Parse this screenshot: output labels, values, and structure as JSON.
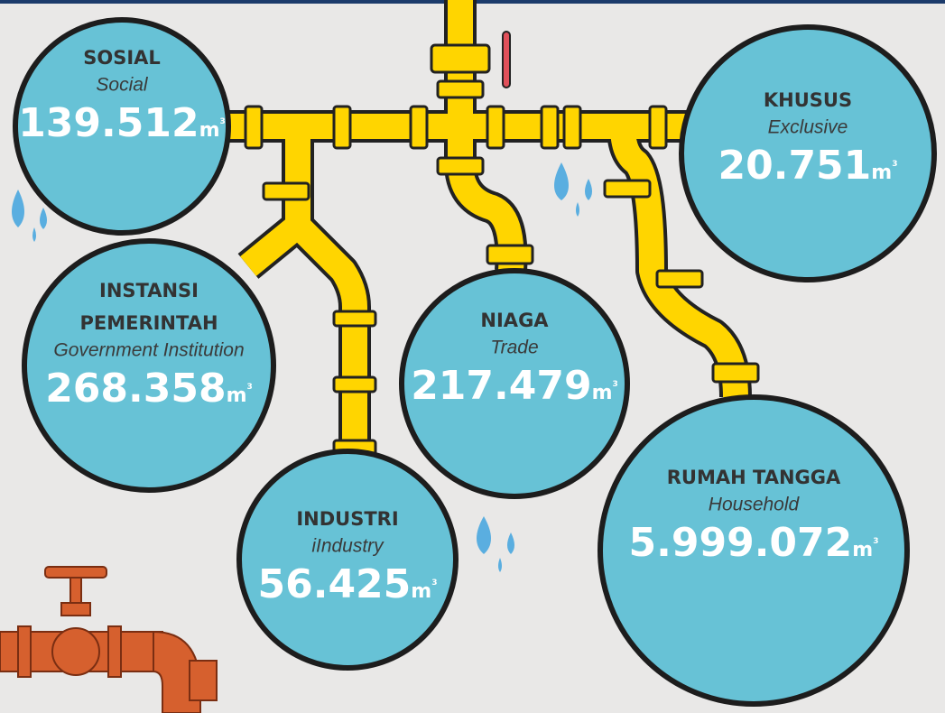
{
  "items": [
    {
      "name_lines": [
        "SOSIAL"
      ],
      "subtitle": "Social",
      "value": "139.512",
      "unit": "m",
      "unit_power": "3"
    },
    {
      "name_lines": [
        "KHUSUS"
      ],
      "subtitle": "Exclusive",
      "value": "20.751",
      "unit": "m",
      "unit_power": "3"
    },
    {
      "name_lines": [
        "INSTANSI",
        "PEMERINTAH"
      ],
      "subtitle": "Government Institution",
      "value": "268.358",
      "unit": "m",
      "unit_power": "3"
    },
    {
      "name_lines": [
        "NIAGA"
      ],
      "subtitle": "Trade",
      "value": "217.479",
      "unit": "m",
      "unit_power": "3"
    },
    {
      "name_lines": [
        "INDUSTRI"
      ],
      "subtitle": "iIndustry",
      "value": "56.425",
      "unit": "m",
      "unit_power": "3"
    },
    {
      "name_lines": [
        "RUMAH TANGGA"
      ],
      "subtitle": "Household",
      "value": "5.999.072",
      "unit": "m",
      "unit_power": "3"
    }
  ]
}
